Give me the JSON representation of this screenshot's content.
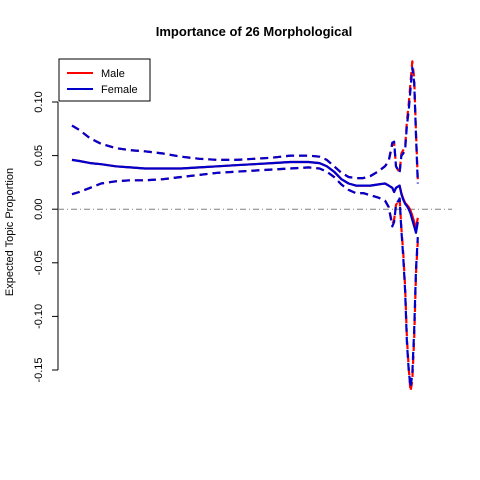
{
  "chart_data": {
    "type": "line",
    "title": "Importance of 26 Morphological",
    "xlabel": "",
    "ylabel": "Expected Topic Proportion",
    "ylim": [
      -0.15,
      0.13
    ],
    "yticks": [
      0.1,
      0.05,
      0.0,
      -0.05,
      -0.1,
      -0.15
    ],
    "ytick_labels": [
      "0.10",
      "0.05",
      "0.00",
      "-0.05",
      "-0.10",
      "-0.15"
    ],
    "x_axis_drawn": false,
    "reference_line": {
      "y": 0,
      "style": "dash-dot",
      "color": "#808080"
    },
    "legend": {
      "position": "top-left",
      "entries": [
        "Male",
        "Female"
      ]
    },
    "colors": {
      "Male": "#ff0000",
      "Female": "#0000cc"
    },
    "x": [
      0,
      0.02,
      0.05,
      0.08,
      0.12,
      0.16,
      0.2,
      0.25,
      0.3,
      0.35,
      0.4,
      0.45,
      0.5,
      0.55,
      0.6,
      0.65,
      0.68,
      0.7,
      0.72,
      0.74,
      0.76,
      0.78,
      0.8,
      0.82,
      0.84,
      0.86,
      0.87,
      0.88,
      0.885,
      0.89,
      0.9,
      0.905,
      0.91,
      0.915,
      0.92,
      0.925,
      0.93,
      0.935,
      0.94,
      0.945,
      0.95
    ],
    "series": [
      {
        "name": "Male",
        "style": "solid",
        "values": [
          0.046,
          0.045,
          0.043,
          0.042,
          0.04,
          0.039,
          0.038,
          0.038,
          0.038,
          0.039,
          0.04,
          0.041,
          0.042,
          0.043,
          0.044,
          0.044,
          0.043,
          0.04,
          0.035,
          0.028,
          0.024,
          0.022,
          0.022,
          0.022,
          0.023,
          0.024,
          0.022,
          0.02,
          0.016,
          0.02,
          0.022,
          0.015,
          0.01,
          0.006,
          0.004,
          0.002,
          -0.001,
          -0.006,
          -0.012,
          -0.018,
          -0.008
        ]
      },
      {
        "name": "Male upper",
        "style": "dashed",
        "values": [
          0.078,
          0.074,
          0.066,
          0.061,
          0.057,
          0.055,
          0.054,
          0.052,
          0.049,
          0.047,
          0.046,
          0.046,
          0.047,
          0.048,
          0.05,
          0.05,
          0.049,
          0.046,
          0.04,
          0.034,
          0.03,
          0.029,
          0.029,
          0.031,
          0.035,
          0.04,
          0.045,
          0.06,
          0.062,
          0.04,
          0.034,
          0.052,
          0.055,
          0.058,
          0.082,
          0.098,
          0.118,
          0.138,
          0.122,
          0.072,
          0.028
        ]
      },
      {
        "name": "Male lower",
        "style": "dashed",
        "values": [
          0.014,
          0.016,
          0.02,
          0.024,
          0.026,
          0.027,
          0.027,
          0.028,
          0.03,
          0.032,
          0.034,
          0.035,
          0.036,
          0.037,
          0.038,
          0.039,
          0.038,
          0.035,
          0.03,
          0.023,
          0.018,
          0.015,
          0.015,
          0.013,
          0.011,
          0.008,
          0.002,
          -0.014,
          -0.01,
          0.004,
          0.01,
          -0.018,
          -0.04,
          -0.072,
          -0.12,
          -0.148,
          -0.17,
          -0.16,
          -0.12,
          -0.06,
          -0.03
        ]
      },
      {
        "name": "Female",
        "style": "solid",
        "values": [
          0.046,
          0.045,
          0.043,
          0.042,
          0.04,
          0.039,
          0.038,
          0.038,
          0.038,
          0.039,
          0.04,
          0.041,
          0.042,
          0.043,
          0.044,
          0.044,
          0.043,
          0.04,
          0.035,
          0.028,
          0.024,
          0.022,
          0.022,
          0.022,
          0.023,
          0.024,
          0.022,
          0.02,
          0.016,
          0.02,
          0.022,
          0.014,
          0.009,
          0.005,
          0.003,
          0.0,
          -0.004,
          -0.01,
          -0.016,
          -0.022,
          -0.012
        ]
      },
      {
        "name": "Female upper",
        "style": "dashed",
        "values": [
          0.078,
          0.074,
          0.066,
          0.061,
          0.057,
          0.055,
          0.054,
          0.052,
          0.049,
          0.047,
          0.046,
          0.046,
          0.047,
          0.048,
          0.05,
          0.05,
          0.049,
          0.046,
          0.04,
          0.034,
          0.03,
          0.029,
          0.029,
          0.031,
          0.035,
          0.04,
          0.045,
          0.062,
          0.063,
          0.04,
          0.034,
          0.05,
          0.052,
          0.055,
          0.078,
          0.092,
          0.112,
          0.132,
          0.118,
          0.068,
          0.024
        ]
      },
      {
        "name": "Female lower",
        "style": "dashed",
        "values": [
          0.014,
          0.016,
          0.02,
          0.024,
          0.026,
          0.027,
          0.027,
          0.028,
          0.03,
          0.032,
          0.034,
          0.035,
          0.036,
          0.037,
          0.038,
          0.039,
          0.038,
          0.035,
          0.03,
          0.023,
          0.018,
          0.015,
          0.015,
          0.013,
          0.011,
          0.008,
          0.002,
          -0.016,
          -0.012,
          0.004,
          0.01,
          -0.02,
          -0.044,
          -0.076,
          -0.124,
          -0.15,
          -0.166,
          -0.154,
          -0.112,
          -0.056,
          -0.026
        ]
      }
    ]
  }
}
